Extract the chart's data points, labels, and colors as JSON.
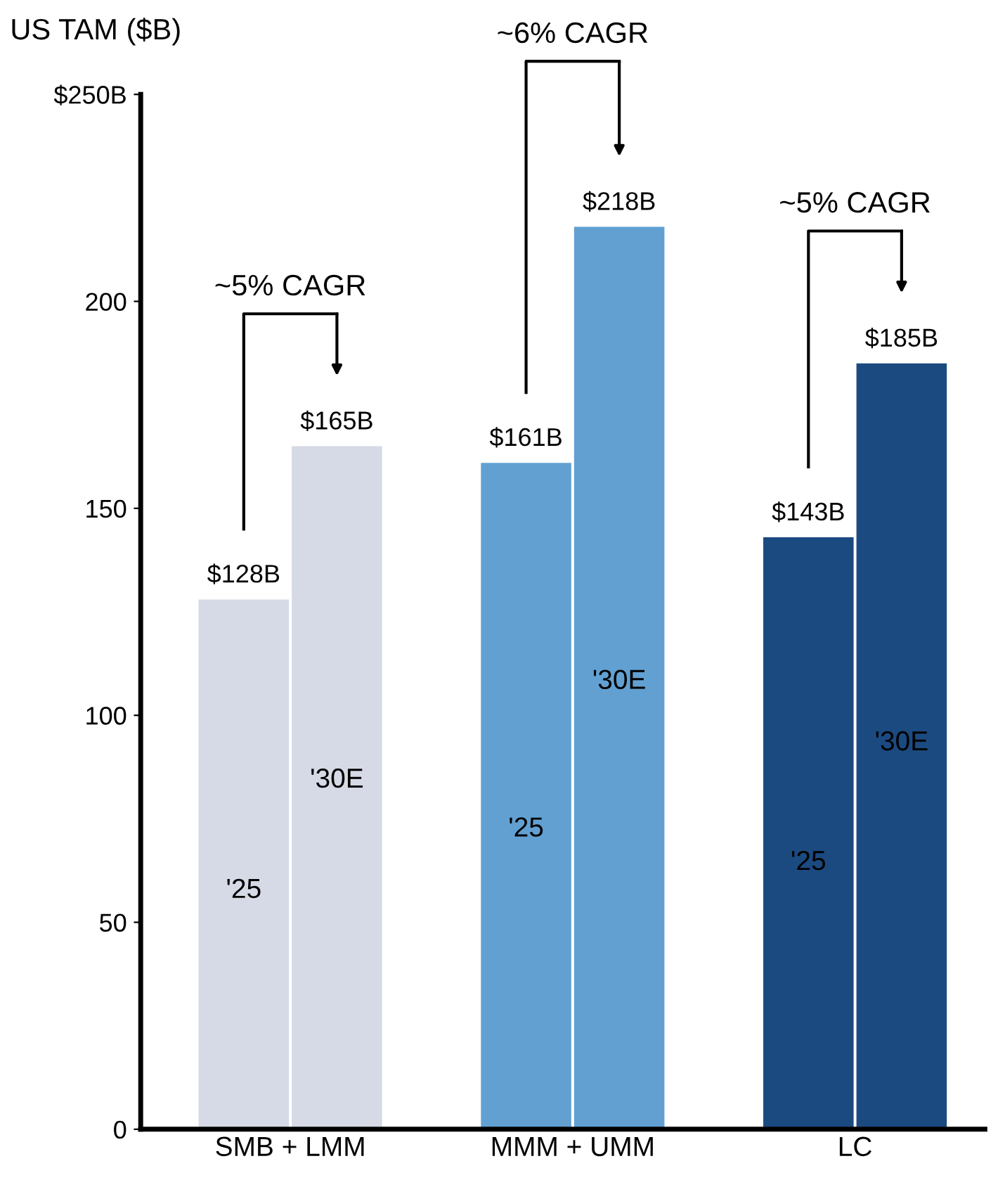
{
  "chart_data": {
    "type": "bar",
    "ylabel": "US TAM ($B)",
    "categories": [
      "SMB + LMM",
      "MMM + UMM",
      "LC"
    ],
    "series": [
      {
        "name": "'25",
        "values": [
          128,
          161,
          143
        ],
        "colors": [
          "#d6dae6",
          "#62a0d2",
          "#1b4a80"
        ],
        "value_labels": [
          "$128B",
          "$161B",
          "$143B"
        ]
      },
      {
        "name": "'30E",
        "values": [
          165,
          218,
          185
        ],
        "colors": [
          "#d6dae6",
          "#62a0d2",
          "#1b4a80"
        ],
        "value_labels": [
          "$165B",
          "$218B",
          "$185B"
        ]
      }
    ],
    "ylim": [
      0,
      250
    ],
    "yticks": [
      0,
      50,
      100,
      150,
      200,
      {
        "value": 250,
        "label": "$250B"
      }
    ],
    "annotations": [
      "~5% CAGR",
      "~6% CAGR",
      "~5% CAGR"
    ],
    "grid": false,
    "legend": false
  }
}
